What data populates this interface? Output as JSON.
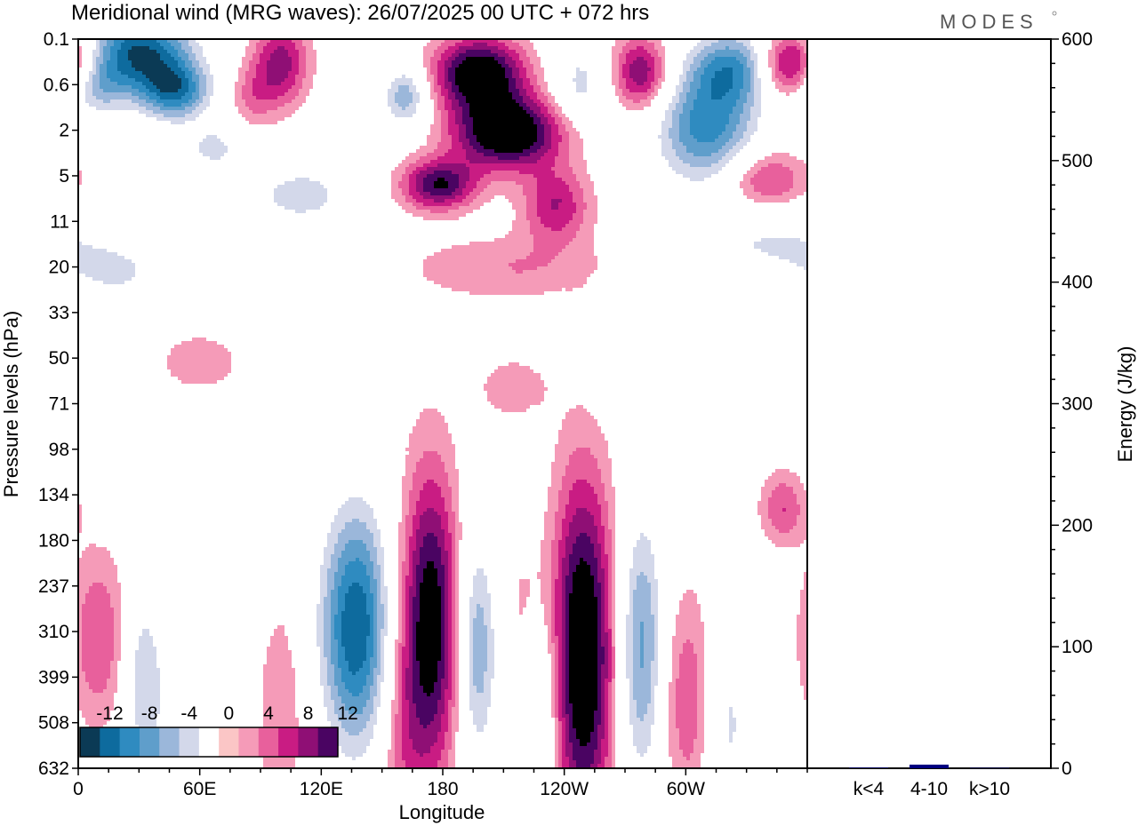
{
  "title": "Meridional wind (MRG waves):  26/07/2025  00 UTC  + 072 hrs",
  "brand": "MODES",
  "chart_data": [
    {
      "type": "heatmap",
      "title": "Meridional wind (MRG waves):  26/07/2025  00 UTC  + 072 hrs",
      "xlabel": "Longitude",
      "ylabel": "Pressure levels (hPa)",
      "x_ticks": [
        "0",
        "60E",
        "120E",
        "180",
        "120W",
        "60W"
      ],
      "x_tick_degrees": [
        0,
        60,
        120,
        180,
        240,
        300
      ],
      "xlim": [
        0,
        360
      ],
      "y_ticks": [
        "0.1",
        "0.6",
        "2",
        "5",
        "11",
        "20",
        "33",
        "50",
        "71",
        "98",
        "134",
        "180",
        "237",
        "310",
        "399",
        "508",
        "632"
      ],
      "colorbar": {
        "labels": [
          "-12",
          "-8",
          "-4",
          "0",
          "4",
          "8",
          "12"
        ],
        "levels": [
          -14,
          -12,
          -10,
          -8,
          -6,
          -4,
          -2,
          2,
          4,
          6,
          8,
          10,
          12,
          14
        ],
        "colors": [
          "#0b3a55",
          "#0e6b9e",
          "#2f8bc0",
          "#5f9ecb",
          "#9bb7da",
          "#d3d8ea",
          "#ffffff",
          "#fbc6c6",
          "#f59bb8",
          "#e8609c",
          "#c91c83",
          "#8f0f75",
          "#4a0462"
        ]
      },
      "features": [
        {
          "lon": 30,
          "lev": 0.5,
          "lon_w": 18,
          "lev_w": 1.1,
          "amp": -14
        },
        {
          "lon": 48,
          "lev": 2.0,
          "lon_w": 12,
          "lev_w": 0.8,
          "amp": -11
        },
        {
          "lon": 8,
          "lev": 1.8,
          "lon_w": 10,
          "lev_w": 0.8,
          "amp": -7
        },
        {
          "lon": 67,
          "lev": 4.2,
          "lon_w": 10,
          "lev_w": 0.6,
          "amp": -5
        },
        {
          "lon": 100,
          "lev": 0.9,
          "lon_w": 10,
          "lev_w": 1.2,
          "amp": 9
        },
        {
          "lon": 86,
          "lev": 2.2,
          "lon_w": 8,
          "lev_w": 0.8,
          "amp": 4
        },
        {
          "lon": 162,
          "lev": 2.2,
          "lon_w": 8,
          "lev_w": 0.8,
          "amp": -8
        },
        {
          "lon": 110,
          "lev": 6.0,
          "lon_w": 15,
          "lev_w": 0.7,
          "amp": -6
        },
        {
          "lon": 20,
          "lev": 9.0,
          "lon_w": 20,
          "lev_w": 0.9,
          "amp": -4
        },
        {
          "lon": 198,
          "lev": 1.3,
          "lon_w": 16,
          "lev_w": 1.0,
          "amp": 15
        },
        {
          "lon": 212,
          "lev": 3.6,
          "lon_w": 19,
          "lev_w": 1.0,
          "amp": 16
        },
        {
          "lon": 178,
          "lev": 5.6,
          "lon_w": 13,
          "lev_w": 0.7,
          "amp": 12
        },
        {
          "lon": 236,
          "lev": 6.4,
          "lon_w": 12,
          "lev_w": 1.0,
          "amp": 8
        },
        {
          "lon": 212,
          "lev": 8.8,
          "lon_w": 36,
          "lev_w": 0.9,
          "amp": 4
        },
        {
          "lon": 278,
          "lev": 1.3,
          "lon_w": 10,
          "lev_w": 1.0,
          "amp": 10
        },
        {
          "lon": 248,
          "lev": 1.8,
          "lon_w": 10,
          "lev_w": 1.0,
          "amp": -5
        },
        {
          "lon": 310,
          "lev": 3.4,
          "lon_w": 17,
          "lev_w": 1.5,
          "amp": -11
        },
        {
          "lon": 325,
          "lev": 1.1,
          "lon_w": 16,
          "lev_w": 1.0,
          "amp": -10
        },
        {
          "lon": 352,
          "lev": 1.0,
          "lon_w": 12,
          "lev_w": 0.9,
          "amp": 13
        },
        {
          "lon": 340,
          "lev": 5.4,
          "lon_w": 14,
          "lev_w": 0.8,
          "amp": 7
        },
        {
          "lon": 340,
          "lev": 7.8,
          "lon_w": 26,
          "lev_w": 1.0,
          "amp": -4
        },
        {
          "lon": 215,
          "lev": 13.4,
          "lon_w": 12,
          "lev_w": 0.8,
          "amp": 4
        },
        {
          "lon": 60,
          "lev": 12.4,
          "lon_w": 18,
          "lev_w": 1.0,
          "amp": 3
        },
        {
          "lon": 310,
          "lev": 13.6,
          "lon_w": 30,
          "lev_w": 1.0,
          "amp": -3
        },
        {
          "lon": 137,
          "lev": 22.6,
          "lon_w": 12,
          "lev_w": 3.2,
          "amp": -14
        },
        {
          "lon": 174,
          "lev": 22.4,
          "lon_w": 10,
          "lev_w": 4.2,
          "amp": 14
        },
        {
          "lon": 197,
          "lev": 23.4,
          "lon_w": 7,
          "lev_w": 3.0,
          "amp": -8
        },
        {
          "lon": 223,
          "lev": 22.6,
          "lon_w": 8,
          "lev_w": 2.5,
          "amp": 6
        },
        {
          "lon": 227,
          "lev": 24.6,
          "lon_w": 8,
          "lev_w": 3.2,
          "amp": -8
        },
        {
          "lon": 249,
          "lev": 23.6,
          "lon_w": 11,
          "lev_w": 4.8,
          "amp": 16
        },
        {
          "lon": 278,
          "lev": 23.4,
          "lon_w": 8,
          "lev_w": 3.6,
          "amp": -9
        },
        {
          "lon": 302,
          "lev": 25.4,
          "lon_w": 10,
          "lev_w": 3.0,
          "amp": 6
        },
        {
          "lon": 320,
          "lev": 26.2,
          "lon_w": 9,
          "lev_w": 3.0,
          "amp": -5
        },
        {
          "lon": 348,
          "lev": 18.0,
          "lon_w": 8,
          "lev_w": 1.0,
          "amp": 6
        },
        {
          "lon": 32,
          "lev": 24.6,
          "lon_w": 7,
          "lev_w": 2.4,
          "amp": -6
        },
        {
          "lon": 10,
          "lev": 23.0,
          "lon_w": 10,
          "lev_w": 2.4,
          "amp": 6
        },
        {
          "lon": 55,
          "lev": 27.0,
          "lon_w": 10,
          "lev_w": 3.0,
          "amp": -4
        },
        {
          "lon": 100,
          "lev": 26.0,
          "lon_w": 8,
          "lev_w": 3.0,
          "amp": 4
        },
        {
          "lon": 160,
          "lev": 27.0,
          "lon_w": 8,
          "lev_w": 3.5,
          "amp": 4
        }
      ]
    },
    {
      "type": "bar",
      "title": "",
      "ylabel": "Energy (J/kg)",
      "categories": [
        "k<4",
        "4-10",
        "k>10"
      ],
      "values": [
        0.5,
        3.0,
        0.3
      ],
      "ylim": [
        0,
        600
      ],
      "y_ticks": [
        "0",
        "100",
        "200",
        "300",
        "400",
        "500",
        "600"
      ],
      "bar_color": "#000080"
    }
  ]
}
